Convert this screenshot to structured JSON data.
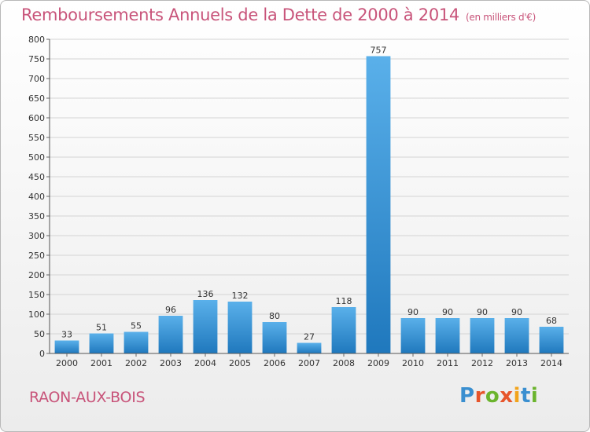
{
  "header": {
    "title": "Remboursements Annuels de la Dette de 2000 à 2014",
    "subtitle": "(en milliers d'€)"
  },
  "footer": {
    "city": "RAON-AUX-BOIS",
    "logo_text": "Proxiti"
  },
  "colors": {
    "title": "#c8547a",
    "bar_top": "#5ab0ea",
    "bar_bottom": "#1f78bd",
    "grid": "#d4d4d4"
  },
  "chart_data": {
    "type": "bar",
    "title": "Remboursements Annuels de la Dette de 2000 à 2014",
    "subtitle": "(en milliers d'€)",
    "categories": [
      "2000",
      "2001",
      "2002",
      "2003",
      "2004",
      "2005",
      "2006",
      "2007",
      "2008",
      "2009",
      "2010",
      "2011",
      "2012",
      "2013",
      "2014"
    ],
    "values": [
      33,
      51,
      55,
      96,
      136,
      132,
      80,
      27,
      118,
      757,
      90,
      90,
      90,
      90,
      68
    ],
    "ylim": [
      0,
      800
    ],
    "yticks": [
      0,
      50,
      100,
      150,
      200,
      250,
      300,
      350,
      400,
      450,
      500,
      550,
      600,
      650,
      700,
      750,
      800
    ],
    "grid": true,
    "data_labels": true
  }
}
